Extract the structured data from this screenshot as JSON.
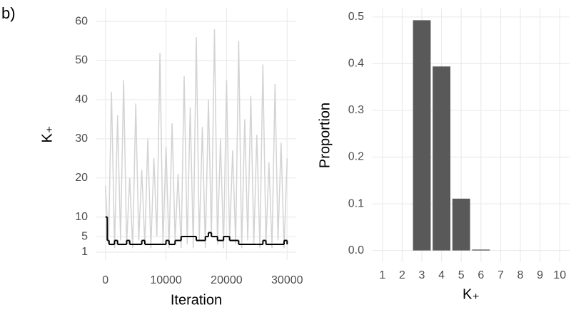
{
  "panel_label": "b)",
  "chart_data": [
    {
      "type": "line",
      "xlabel": "Iteration",
      "ylabel": "K₊",
      "xlim": [
        -1500,
        31500
      ],
      "ylim": [
        -1,
        63.3
      ],
      "xticks": [
        0,
        10000,
        20000,
        30000
      ],
      "yticks": [
        1,
        5,
        10,
        20,
        30,
        40,
        50,
        60
      ],
      "grid": true,
      "series": [
        {
          "color": "#d3d3d3",
          "x": [
            0,
            500,
            1000,
            1500,
            2000,
            2500,
            3000,
            3500,
            4000,
            4500,
            5000,
            5500,
            6000,
            6500,
            7000,
            7500,
            8000,
            8500,
            9000,
            9500,
            10000,
            10500,
            11000,
            11500,
            12000,
            12500,
            13000,
            13500,
            14000,
            14500,
            15000,
            15500,
            16000,
            16500,
            17000,
            17500,
            18000,
            18500,
            19000,
            19500,
            20000,
            20500,
            21000,
            21500,
            22000,
            22500,
            23000,
            23500,
            24000,
            24500,
            25000,
            25500,
            26000,
            26500,
            27000,
            27500,
            28000,
            28500,
            29000,
            29500,
            30000
          ],
          "values": [
            18,
            3,
            42,
            2,
            36,
            4,
            45,
            3,
            20,
            2,
            39,
            4,
            22,
            3,
            30,
            2,
            25,
            5,
            52,
            3,
            28,
            2,
            34,
            4,
            21,
            2,
            46,
            3,
            38,
            2,
            56,
            4,
            33,
            2,
            40,
            5,
            58,
            3,
            30,
            2,
            45,
            4,
            27,
            3,
            55,
            2,
            35,
            4,
            41,
            3,
            31,
            2,
            49,
            3,
            24,
            2,
            44,
            4,
            29,
            2,
            25
          ]
        },
        {
          "color": "#000000",
          "step": true,
          "x": [
            0,
            300,
            600,
            1500,
            2000,
            2500,
            3500,
            4000,
            6000,
            6500,
            7500,
            10000,
            10500,
            11500,
            12500,
            13000,
            15000,
            16500,
            17000,
            17500,
            18500,
            19500,
            20500,
            22000,
            25000,
            26000,
            26500,
            27500,
            29500,
            30000
          ],
          "values": [
            10,
            4,
            3,
            4,
            3,
            3,
            4,
            3,
            4,
            3,
            3,
            4,
            3,
            4,
            5,
            5,
            4,
            5,
            6,
            5,
            4,
            5,
            4,
            3,
            3,
            4,
            3,
            3,
            4,
            3
          ]
        }
      ]
    },
    {
      "type": "bar",
      "xlabel": "K₊",
      "ylabel": "Proportion",
      "categories": [
        "1",
        "2",
        "3",
        "4",
        "5",
        "6",
        "7",
        "8",
        "9",
        "10"
      ],
      "values": [
        0,
        0,
        0.493,
        0.394,
        0.111,
        0.002,
        0,
        0,
        0,
        0
      ],
      "color": "#595959",
      "ylim": [
        -0.025,
        0.518
      ],
      "yticks": [
        {
          "value": 0,
          "label": "0.0"
        },
        0.1,
        0.2,
        0.3,
        0.4,
        0.5
      ],
      "grid": true
    }
  ]
}
